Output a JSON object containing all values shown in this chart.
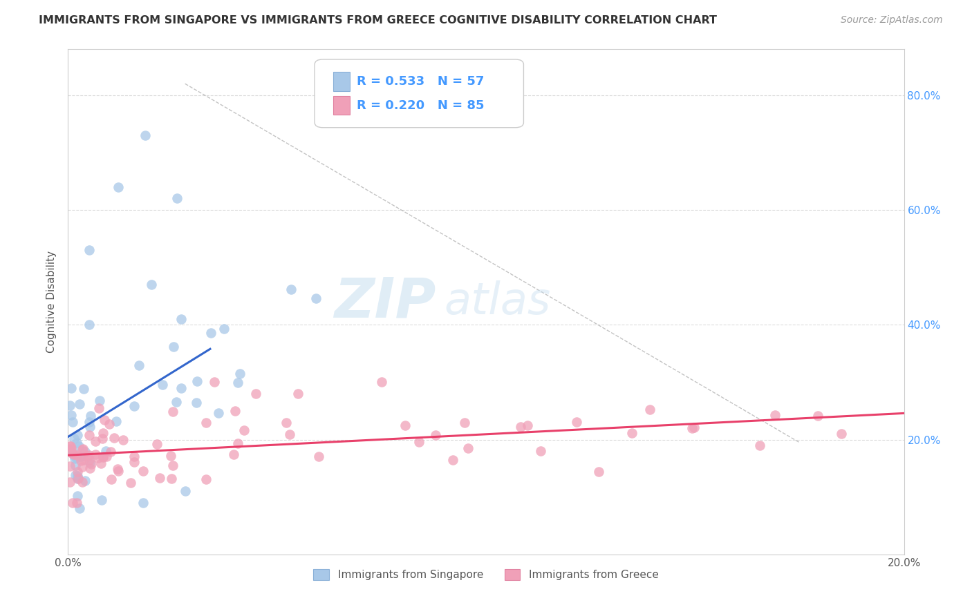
{
  "title": "IMMIGRANTS FROM SINGAPORE VS IMMIGRANTS FROM GREECE COGNITIVE DISABILITY CORRELATION CHART",
  "source": "Source: ZipAtlas.com",
  "ylabel": "Cognitive Disability",
  "xlim": [
    0.0,
    0.2
  ],
  "ylim": [
    0.0,
    0.88
  ],
  "singapore_R": 0.533,
  "singapore_N": 57,
  "greece_R": 0.22,
  "greece_N": 85,
  "singapore_color": "#a8c8e8",
  "greece_color": "#f0a0b8",
  "singapore_line_color": "#3366cc",
  "greece_line_color": "#e8406a",
  "background_color": "#ffffff",
  "grid_color": "#cccccc",
  "watermark_zip": "ZIP",
  "watermark_atlas": "atlas",
  "tick_color": "#4499ff",
  "legend_R_color": "#4499ff",
  "watermark": "ZIPatlas"
}
